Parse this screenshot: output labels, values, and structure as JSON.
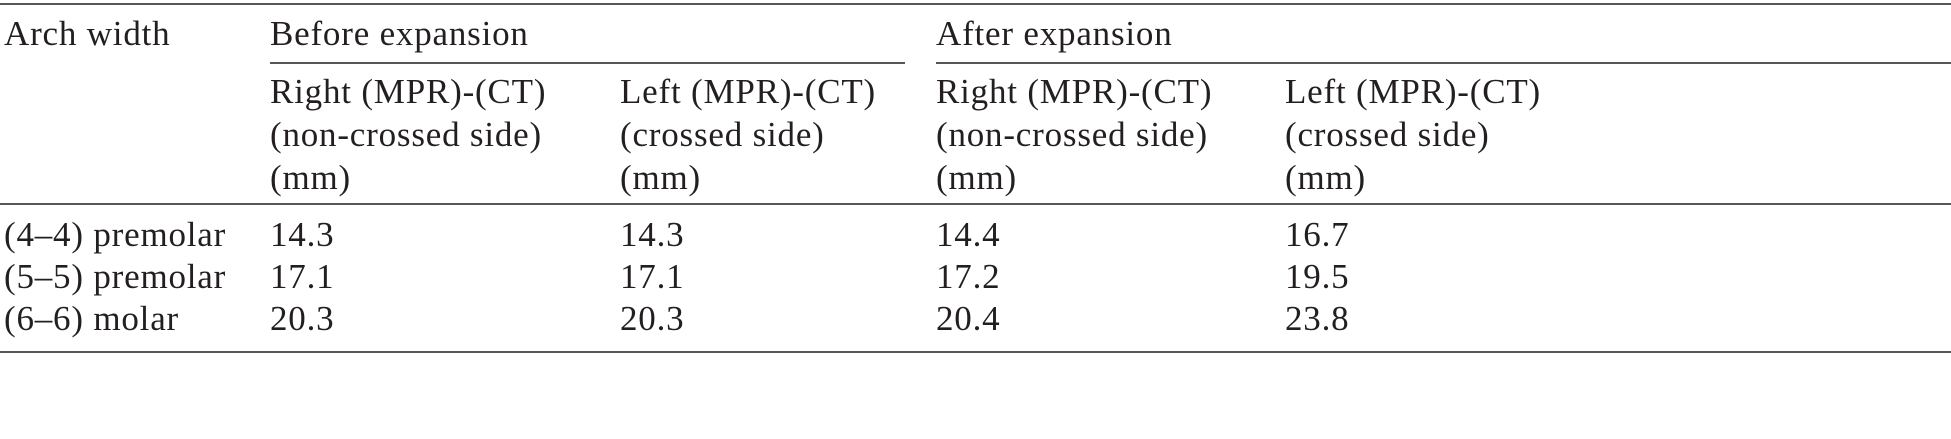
{
  "table": {
    "header": [
      "Arch width",
      "Before expansion",
      "After expansion"
    ],
    "subheaders": [
      [
        "Right (MPR)-(CT)",
        "(non-crossed side)",
        "(mm)"
      ],
      [
        "Left (MPR)-(CT)",
        "(crossed side)",
        "(mm)"
      ],
      [
        "Right (MPR)-(CT)",
        "(non-crossed side)",
        "(mm)"
      ],
      [
        "Left (MPR)-(CT)",
        "(crossed side)",
        "(mm)"
      ]
    ],
    "rows": [
      [
        "(4–4) premolar",
        14.3,
        14.3,
        14.4,
        16.7
      ],
      [
        "(5–5) premolar",
        17.1,
        17.1,
        17.2,
        19.5
      ],
      [
        "(6–6) molar",
        20.3,
        20.3,
        20.4,
        23.8
      ]
    ]
  }
}
